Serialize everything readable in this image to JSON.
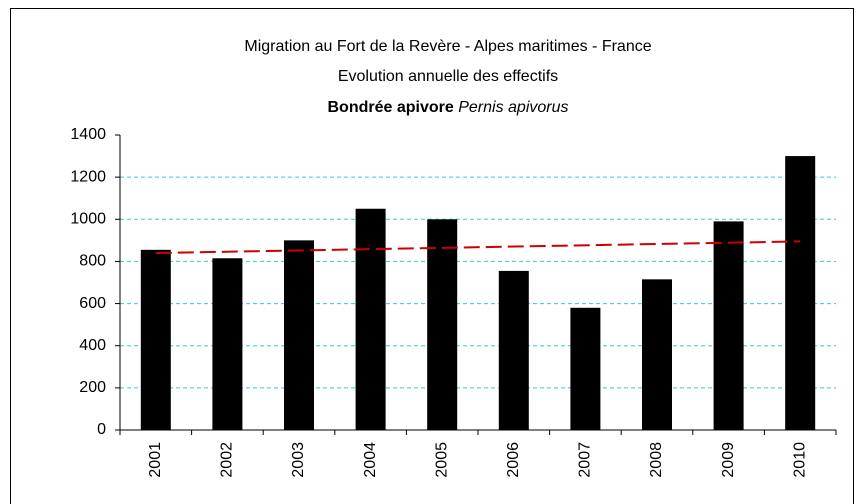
{
  "chart_data": {
    "type": "bar",
    "title": "Migration au Fort de la Revère - Alpes maritimes - France",
    "subtitle": "Evolution annuelle des effectifs",
    "species": {
      "common": "Bondrée apivore",
      "latin": "Pernis apivorus"
    },
    "categories": [
      "2001",
      "2002",
      "2003",
      "2004",
      "2005",
      "2006",
      "2007",
      "2008",
      "2009",
      "2010"
    ],
    "values": [
      855,
      815,
      900,
      1050,
      1000,
      755,
      580,
      715,
      990,
      1300
    ],
    "color": "#000000",
    "trendline": {
      "color": "#cc0000",
      "values": [
        840,
        895
      ]
    },
    "ylim": [
      0,
      1400
    ],
    "yticks": [
      0,
      200,
      400,
      600,
      800,
      1000,
      1200,
      1400
    ],
    "grid": true,
    "grid_color": "#33cccc"
  }
}
